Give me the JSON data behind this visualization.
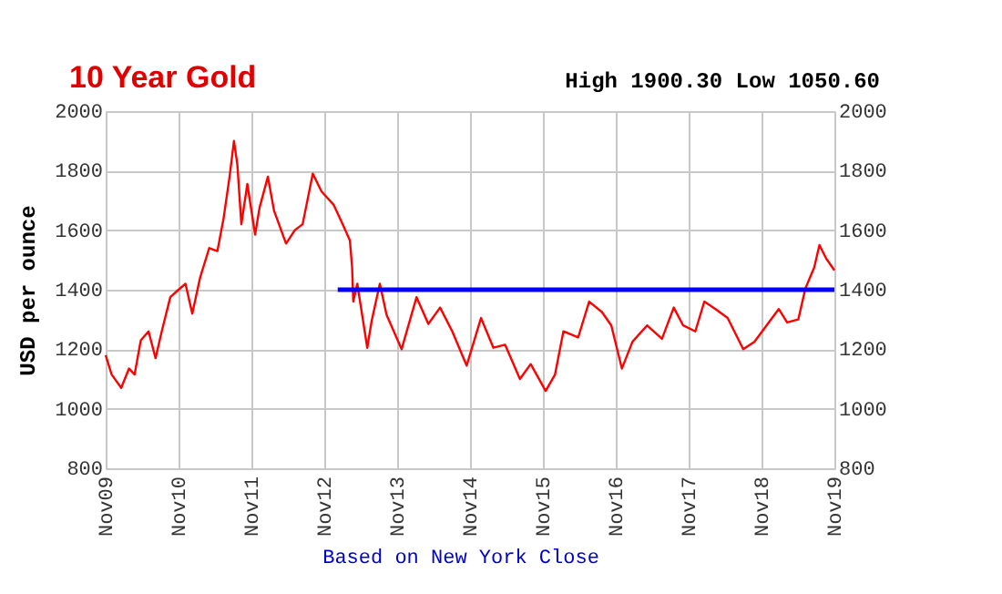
{
  "chart_data": {
    "type": "line",
    "title": "10 Year Gold",
    "subtitle": "High 1900.30 Low 1050.60",
    "ylabel": "USD per ounce",
    "annotations": [
      "Based on New York Close"
    ],
    "x": [
      "2009-11-01",
      "2009-12-01",
      "2010-01-18",
      "2010-02-26",
      "2010-03-26",
      "2010-04-26",
      "2010-06-04",
      "2010-07-09",
      "2010-08-09",
      "2010-09-21",
      "2010-11-01",
      "2010-12-06",
      "2011-01-09",
      "2011-02-17",
      "2011-04-04",
      "2011-05-15",
      "2011-06-15",
      "2011-07-15",
      "2011-08-06",
      "2011-08-23",
      "2011-09-12",
      "2011-10-12",
      "2011-11-20",
      "2011-12-12",
      "2012-01-23",
      "2012-02-23",
      "2012-04-23",
      "2012-06-06",
      "2012-07-15",
      "2012-09-04",
      "2012-10-18",
      "2012-12-18",
      "2013-02-01",
      "2013-03-09",
      "2013-03-20",
      "2013-03-26",
      "2013-04-15",
      "2013-06-04",
      "2013-06-26",
      "2013-08-06",
      "2013-09-09",
      "2013-11-23",
      "2014-02-06",
      "2014-04-06",
      "2014-06-04",
      "2014-08-04",
      "2014-10-15",
      "2014-12-26",
      "2015-02-26",
      "2015-04-26",
      "2015-07-09",
      "2015-09-01",
      "2015-11-15",
      "2016-01-01",
      "2016-02-12",
      "2016-04-26",
      "2016-06-20",
      "2016-08-23",
      "2016-10-09",
      "2016-12-01",
      "2017-01-23",
      "2017-04-06",
      "2017-06-20",
      "2017-08-18",
      "2017-10-04",
      "2017-12-04",
      "2018-01-18",
      "2018-03-15",
      "2018-05-15",
      "2018-08-01",
      "2018-09-26",
      "2018-11-26",
      "2019-01-26",
      "2019-03-09",
      "2019-05-04",
      "2019-06-09",
      "2019-07-23",
      "2019-08-18",
      "2019-09-21",
      "2019-11-01"
    ],
    "series": [
      {
        "color": "#ff0000",
        "values": [
          1180,
          1115,
          1070,
          1135,
          1115,
          1230,
          1260,
          1170,
          1260,
          1375,
          1400,
          1420,
          1320,
          1440,
          1540,
          1530,
          1640,
          1780,
          1900,
          1820,
          1620,
          1755,
          1585,
          1675,
          1780,
          1665,
          1555,
          1600,
          1620,
          1790,
          1730,
          1685,
          1620,
          1565,
          1475,
          1360,
          1420,
          1205,
          1295,
          1420,
          1315,
          1200,
          1375,
          1285,
          1340,
          1260,
          1145,
          1305,
          1205,
          1215,
          1100,
          1150,
          1060,
          1115,
          1260,
          1240,
          1360,
          1325,
          1280,
          1135,
          1225,
          1280,
          1235,
          1340,
          1280,
          1260,
          1360,
          1335,
          1305,
          1200,
          1225,
          1280,
          1335,
          1290,
          1300,
          1405,
          1475,
          1550,
          1505,
          1465
        ]
      },
      {
        "type": "line",
        "color": "#0000ff",
        "axis": "y2",
        "x": [
          "2013-01-07",
          "2019-11-01"
        ],
        "values": [
          1400,
          1400
        ]
      }
    ],
    "xlim": [
      "2009-11-01",
      "2019-11-01"
    ],
    "xticks": [
      {
        "value": "2009-11-01",
        "label": "Nov09"
      },
      {
        "value": "2010-11-01",
        "label": "Nov10"
      },
      {
        "value": "2011-11-01",
        "label": "Nov11"
      },
      {
        "value": "2012-11-01",
        "label": "Nov12"
      },
      {
        "value": "2013-11-01",
        "label": "Nov13"
      },
      {
        "value": "2014-11-01",
        "label": "Nov14"
      },
      {
        "value": "2015-11-01",
        "label": "Nov15"
      },
      {
        "value": "2016-11-01",
        "label": "Nov16"
      },
      {
        "value": "2017-11-01",
        "label": "Nov17"
      },
      {
        "value": "2018-11-01",
        "label": "Nov18"
      },
      {
        "value": "2019-11-01",
        "label": "Nov19"
      }
    ],
    "ylim": [
      800,
      2000
    ],
    "yticks": [
      800,
      1000,
      1200,
      1400,
      1600,
      1800,
      2000
    ],
    "y2lim": [
      800,
      2000
    ],
    "y2ticks": [
      800,
      1000,
      1200,
      1400,
      1600,
      1800,
      2000
    ],
    "grid": true,
    "marker": "none",
    "line_style": "solid"
  }
}
